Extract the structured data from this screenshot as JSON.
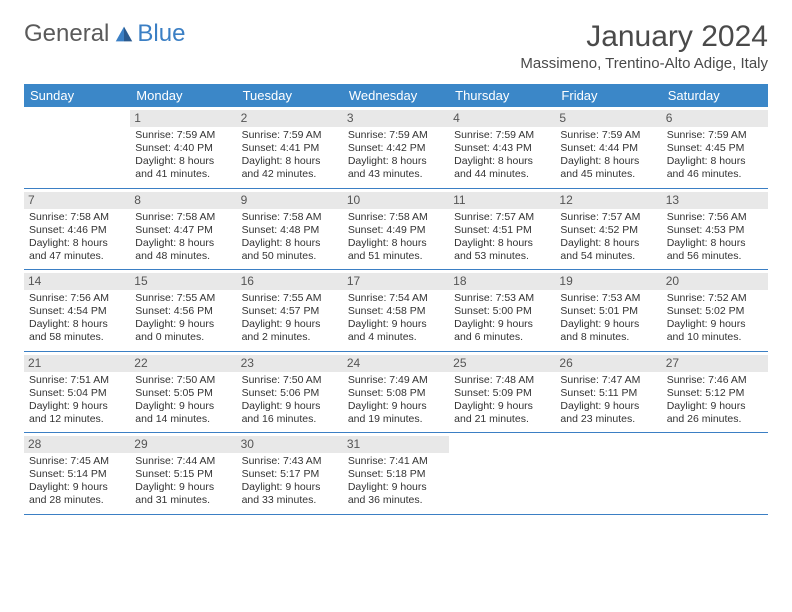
{
  "logo": {
    "word1": "General",
    "word2": "Blue"
  },
  "title": "January 2024",
  "location": "Massimeno, Trentino-Alto Adige, Italy",
  "colors": {
    "header_bg": "#3b87c8",
    "header_text": "#ffffff",
    "daynum_bg": "#e8e8e8",
    "week_border": "#3b7fc4",
    "text": "#4a4a4a"
  },
  "day_labels": [
    "Sunday",
    "Monday",
    "Tuesday",
    "Wednesday",
    "Thursday",
    "Friday",
    "Saturday"
  ],
  "weeks": [
    [
      null,
      {
        "n": "1",
        "sr": "Sunrise: 7:59 AM",
        "ss": "Sunset: 4:40 PM",
        "d1": "Daylight: 8 hours",
        "d2": "and 41 minutes."
      },
      {
        "n": "2",
        "sr": "Sunrise: 7:59 AM",
        "ss": "Sunset: 4:41 PM",
        "d1": "Daylight: 8 hours",
        "d2": "and 42 minutes."
      },
      {
        "n": "3",
        "sr": "Sunrise: 7:59 AM",
        "ss": "Sunset: 4:42 PM",
        "d1": "Daylight: 8 hours",
        "d2": "and 43 minutes."
      },
      {
        "n": "4",
        "sr": "Sunrise: 7:59 AM",
        "ss": "Sunset: 4:43 PM",
        "d1": "Daylight: 8 hours",
        "d2": "and 44 minutes."
      },
      {
        "n": "5",
        "sr": "Sunrise: 7:59 AM",
        "ss": "Sunset: 4:44 PM",
        "d1": "Daylight: 8 hours",
        "d2": "and 45 minutes."
      },
      {
        "n": "6",
        "sr": "Sunrise: 7:59 AM",
        "ss": "Sunset: 4:45 PM",
        "d1": "Daylight: 8 hours",
        "d2": "and 46 minutes."
      }
    ],
    [
      {
        "n": "7",
        "sr": "Sunrise: 7:58 AM",
        "ss": "Sunset: 4:46 PM",
        "d1": "Daylight: 8 hours",
        "d2": "and 47 minutes."
      },
      {
        "n": "8",
        "sr": "Sunrise: 7:58 AM",
        "ss": "Sunset: 4:47 PM",
        "d1": "Daylight: 8 hours",
        "d2": "and 48 minutes."
      },
      {
        "n": "9",
        "sr": "Sunrise: 7:58 AM",
        "ss": "Sunset: 4:48 PM",
        "d1": "Daylight: 8 hours",
        "d2": "and 50 minutes."
      },
      {
        "n": "10",
        "sr": "Sunrise: 7:58 AM",
        "ss": "Sunset: 4:49 PM",
        "d1": "Daylight: 8 hours",
        "d2": "and 51 minutes."
      },
      {
        "n": "11",
        "sr": "Sunrise: 7:57 AM",
        "ss": "Sunset: 4:51 PM",
        "d1": "Daylight: 8 hours",
        "d2": "and 53 minutes."
      },
      {
        "n": "12",
        "sr": "Sunrise: 7:57 AM",
        "ss": "Sunset: 4:52 PM",
        "d1": "Daylight: 8 hours",
        "d2": "and 54 minutes."
      },
      {
        "n": "13",
        "sr": "Sunrise: 7:56 AM",
        "ss": "Sunset: 4:53 PM",
        "d1": "Daylight: 8 hours",
        "d2": "and 56 minutes."
      }
    ],
    [
      {
        "n": "14",
        "sr": "Sunrise: 7:56 AM",
        "ss": "Sunset: 4:54 PM",
        "d1": "Daylight: 8 hours",
        "d2": "and 58 minutes."
      },
      {
        "n": "15",
        "sr": "Sunrise: 7:55 AM",
        "ss": "Sunset: 4:56 PM",
        "d1": "Daylight: 9 hours",
        "d2": "and 0 minutes."
      },
      {
        "n": "16",
        "sr": "Sunrise: 7:55 AM",
        "ss": "Sunset: 4:57 PM",
        "d1": "Daylight: 9 hours",
        "d2": "and 2 minutes."
      },
      {
        "n": "17",
        "sr": "Sunrise: 7:54 AM",
        "ss": "Sunset: 4:58 PM",
        "d1": "Daylight: 9 hours",
        "d2": "and 4 minutes."
      },
      {
        "n": "18",
        "sr": "Sunrise: 7:53 AM",
        "ss": "Sunset: 5:00 PM",
        "d1": "Daylight: 9 hours",
        "d2": "and 6 minutes."
      },
      {
        "n": "19",
        "sr": "Sunrise: 7:53 AM",
        "ss": "Sunset: 5:01 PM",
        "d1": "Daylight: 9 hours",
        "d2": "and 8 minutes."
      },
      {
        "n": "20",
        "sr": "Sunrise: 7:52 AM",
        "ss": "Sunset: 5:02 PM",
        "d1": "Daylight: 9 hours",
        "d2": "and 10 minutes."
      }
    ],
    [
      {
        "n": "21",
        "sr": "Sunrise: 7:51 AM",
        "ss": "Sunset: 5:04 PM",
        "d1": "Daylight: 9 hours",
        "d2": "and 12 minutes."
      },
      {
        "n": "22",
        "sr": "Sunrise: 7:50 AM",
        "ss": "Sunset: 5:05 PM",
        "d1": "Daylight: 9 hours",
        "d2": "and 14 minutes."
      },
      {
        "n": "23",
        "sr": "Sunrise: 7:50 AM",
        "ss": "Sunset: 5:06 PM",
        "d1": "Daylight: 9 hours",
        "d2": "and 16 minutes."
      },
      {
        "n": "24",
        "sr": "Sunrise: 7:49 AM",
        "ss": "Sunset: 5:08 PM",
        "d1": "Daylight: 9 hours",
        "d2": "and 19 minutes."
      },
      {
        "n": "25",
        "sr": "Sunrise: 7:48 AM",
        "ss": "Sunset: 5:09 PM",
        "d1": "Daylight: 9 hours",
        "d2": "and 21 minutes."
      },
      {
        "n": "26",
        "sr": "Sunrise: 7:47 AM",
        "ss": "Sunset: 5:11 PM",
        "d1": "Daylight: 9 hours",
        "d2": "and 23 minutes."
      },
      {
        "n": "27",
        "sr": "Sunrise: 7:46 AM",
        "ss": "Sunset: 5:12 PM",
        "d1": "Daylight: 9 hours",
        "d2": "and 26 minutes."
      }
    ],
    [
      {
        "n": "28",
        "sr": "Sunrise: 7:45 AM",
        "ss": "Sunset: 5:14 PM",
        "d1": "Daylight: 9 hours",
        "d2": "and 28 minutes."
      },
      {
        "n": "29",
        "sr": "Sunrise: 7:44 AM",
        "ss": "Sunset: 5:15 PM",
        "d1": "Daylight: 9 hours",
        "d2": "and 31 minutes."
      },
      {
        "n": "30",
        "sr": "Sunrise: 7:43 AM",
        "ss": "Sunset: 5:17 PM",
        "d1": "Daylight: 9 hours",
        "d2": "and 33 minutes."
      },
      {
        "n": "31",
        "sr": "Sunrise: 7:41 AM",
        "ss": "Sunset: 5:18 PM",
        "d1": "Daylight: 9 hours",
        "d2": "and 36 minutes."
      },
      null,
      null,
      null
    ]
  ]
}
